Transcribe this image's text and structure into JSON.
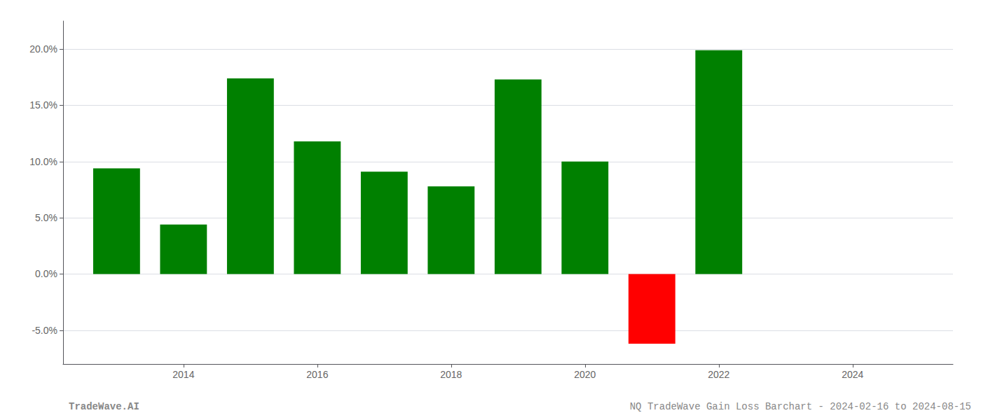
{
  "chart_data": {
    "type": "bar",
    "x": [
      2013,
      2014,
      2015,
      2016,
      2017,
      2018,
      2019,
      2020,
      2021,
      2022
    ],
    "values": [
      0.094,
      0.044,
      0.174,
      0.118,
      0.091,
      0.078,
      0.173,
      0.1,
      -0.062,
      0.199
    ],
    "colors": [
      "#008000",
      "#008000",
      "#008000",
      "#008000",
      "#008000",
      "#008000",
      "#008000",
      "#008000",
      "#ff0000",
      "#008000"
    ],
    "xlim": [
      2012.2,
      2025.5
    ],
    "xticks": [
      2014,
      2016,
      2018,
      2020,
      2022,
      2024
    ],
    "ylim": [
      -0.08,
      0.225
    ],
    "yticks": [
      {
        "value": -0.05,
        "label": "-5.0%"
      },
      {
        "value": 0.0,
        "label": "0.0%"
      },
      {
        "value": 0.05,
        "label": "5.0%"
      },
      {
        "value": 0.1,
        "label": "10.0%"
      },
      {
        "value": 0.15,
        "label": "15.0%"
      },
      {
        "value": 0.2,
        "label": "20.0%"
      }
    ],
    "grid": true,
    "annotations": [
      "TradeWave.AI",
      "NQ TradeWave Gain Loss Barchart - 2024-02-16 to 2024-08-15"
    ]
  }
}
